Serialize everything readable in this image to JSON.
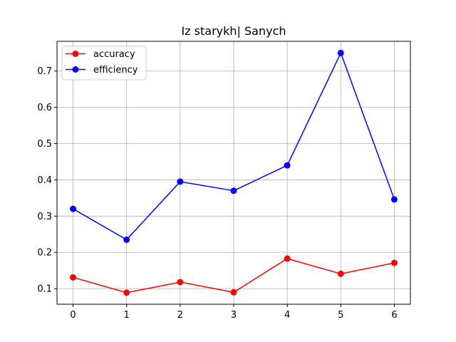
{
  "chart_data": {
    "type": "line",
    "title": "Iz starykh| Sanych",
    "xlabel": "",
    "ylabel": "",
    "x": [
      0,
      1,
      2,
      3,
      4,
      5,
      6
    ],
    "xticks": [
      "0",
      "1",
      "2",
      "3",
      "4",
      "5",
      "6"
    ],
    "yticks": [
      "0.1",
      "0.2",
      "0.3",
      "0.4",
      "0.5",
      "0.6",
      "0.7"
    ],
    "xlim": [
      -0.3,
      6.3
    ],
    "ylim": [
      0.057,
      0.782
    ],
    "grid": true,
    "legend_position": "top-left",
    "series": [
      {
        "name": "accuracy",
        "color": "#ff0000",
        "marker": "circle",
        "values": [
          0.131,
          0.089,
          0.118,
          0.09,
          0.183,
          0.141,
          0.171
        ]
      },
      {
        "name": "efficiency",
        "color": "#0000ff",
        "marker": "circle",
        "values": [
          0.32,
          0.235,
          0.395,
          0.37,
          0.44,
          0.75,
          0.346
        ]
      }
    ]
  }
}
